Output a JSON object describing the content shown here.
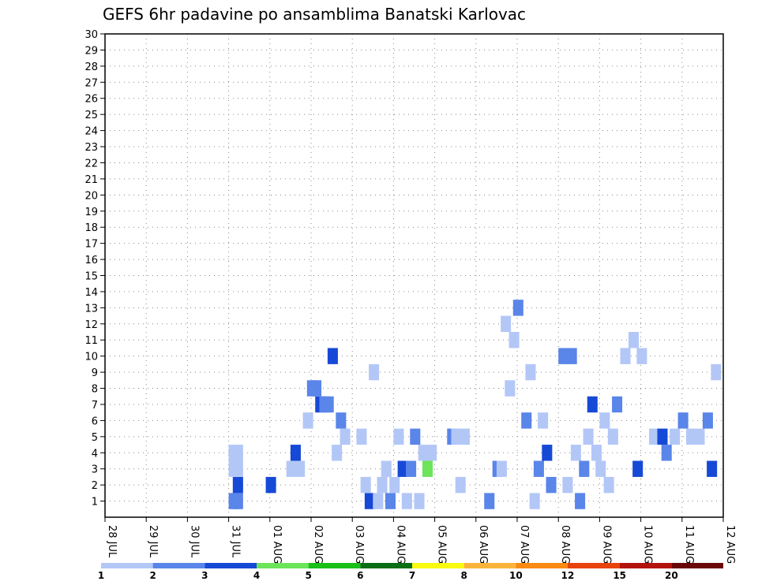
{
  "chart_data": {
    "type": "heatmap",
    "title": "GEFS 6hr padavine po ansamblima Banatski Karlovac",
    "x_labels": [
      "28 JUL",
      "29 JUL",
      "30 JUL",
      "31 JUL",
      "01 AUG",
      "02 AUG",
      "03 AUG",
      "04 AUG",
      "05 AUG",
      "06 AUG",
      "07 AUG",
      "08 AUG",
      "09 AUG",
      "10 AUG",
      "11 AUG",
      "12 AUG"
    ],
    "y_labels": [
      "1",
      "2",
      "3",
      "4",
      "5",
      "6",
      "7",
      "8",
      "9",
      "10",
      "11",
      "12",
      "13",
      "14",
      "15",
      "16",
      "17",
      "18",
      "19",
      "20",
      "21",
      "22",
      "23",
      "24",
      "25",
      "26",
      "27",
      "28",
      "29",
      "30"
    ],
    "x_range": [
      0,
      15
    ],
    "y_range": [
      0,
      30
    ],
    "grid": true,
    "legend_position": "bottom",
    "time_step_hours": 6,
    "colorbar": {
      "labels": [
        "1",
        "2",
        "3",
        "4",
        "5",
        "6",
        "7",
        "8",
        "10",
        "12",
        "15",
        "20"
      ],
      "colors": [
        "#b3c7f7",
        "#5a85e9",
        "#1649d6",
        "#6ce55a",
        "#18c018",
        "#0b6e14",
        "#fafa11",
        "#fbb43b",
        "#fb8a13",
        "#e8430b",
        "#b3130b",
        "#6a0707"
      ]
    },
    "cells": [
      [
        3.0,
        1,
        2
      ],
      [
        3.1,
        1,
        2
      ],
      [
        3.1,
        2,
        3
      ],
      [
        3.0,
        3,
        1
      ],
      [
        3.1,
        3,
        1
      ],
      [
        3.0,
        4,
        1
      ],
      [
        3.1,
        4,
        1
      ],
      [
        4.9,
        8,
        2
      ],
      [
        5.1,
        7,
        3
      ],
      [
        5.2,
        7,
        2
      ],
      [
        5.3,
        7,
        2
      ],
      [
        5.4,
        10,
        3
      ],
      [
        5.5,
        4,
        1
      ],
      [
        5.6,
        6,
        2
      ],
      [
        5.7,
        5,
        1
      ],
      [
        6.3,
        1,
        3
      ],
      [
        6.2,
        2,
        1
      ],
      [
        6.4,
        9,
        1
      ],
      [
        6.1,
        5,
        1
      ],
      [
        6.6,
        2,
        1
      ],
      [
        6.7,
        3,
        1
      ],
      [
        6.8,
        1,
        2
      ],
      [
        6.9,
        2,
        1
      ],
      [
        7.1,
        3,
        3
      ],
      [
        7.2,
        1,
        1
      ],
      [
        7.6,
        4,
        1
      ],
      [
        7.7,
        3,
        4
      ],
      [
        7.8,
        4,
        1
      ],
      [
        8.5,
        2,
        1
      ],
      [
        8.3,
        5,
        2
      ],
      [
        8.4,
        5,
        1
      ],
      [
        8.6,
        5,
        1
      ],
      [
        9.4,
        3,
        2
      ],
      [
        9.2,
        1,
        2
      ],
      [
        9.5,
        3,
        1
      ],
      [
        9.6,
        12,
        1
      ],
      [
        9.7,
        8,
        1
      ],
      [
        9.8,
        11,
        1
      ],
      [
        9.9,
        13,
        2
      ],
      [
        10.4,
        3,
        2
      ],
      [
        10.5,
        6,
        1
      ],
      [
        10.6,
        4,
        3
      ],
      [
        10.1,
        6,
        2
      ],
      [
        10.2,
        9,
        1
      ],
      [
        10.3,
        1,
        1
      ],
      [
        10.7,
        2,
        2
      ],
      [
        11.0,
        10,
        2
      ],
      [
        11.1,
        2,
        1
      ],
      [
        11.2,
        10,
        2
      ],
      [
        11.4,
        1,
        2
      ],
      [
        11.5,
        3,
        2
      ],
      [
        11.6,
        5,
        1
      ],
      [
        11.7,
        7,
        3
      ],
      [
        11.3,
        4,
        1
      ],
      [
        11.8,
        4,
        1
      ],
      [
        11.9,
        3,
        1
      ],
      [
        12.0,
        6,
        1
      ],
      [
        12.1,
        2,
        1
      ],
      [
        12.2,
        5,
        1
      ],
      [
        12.3,
        7,
        2
      ],
      [
        12.5,
        10,
        1
      ],
      [
        12.7,
        11,
        1
      ],
      [
        12.8,
        3,
        3
      ],
      [
        12.9,
        10,
        1
      ],
      [
        13.2,
        5,
        1
      ],
      [
        13.4,
        5,
        3
      ],
      [
        13.5,
        4,
        2
      ],
      [
        13.7,
        5,
        1
      ],
      [
        13.9,
        6,
        2
      ],
      [
        14.1,
        5,
        1
      ],
      [
        14.3,
        5,
        1
      ],
      [
        14.5,
        6,
        2
      ],
      [
        14.6,
        3,
        3
      ],
      [
        14.7,
        9,
        1
      ],
      [
        3.9,
        2,
        3
      ],
      [
        4.4,
        3,
        1
      ],
      [
        4.5,
        4,
        3
      ],
      [
        4.6,
        3,
        1
      ],
      [
        4.8,
        6,
        1
      ],
      [
        5.0,
        8,
        2
      ],
      [
        6.5,
        1,
        1
      ],
      [
        7.0,
        5,
        1
      ],
      [
        7.3,
        3,
        2
      ],
      [
        7.4,
        5,
        2
      ],
      [
        7.5,
        1,
        1
      ]
    ]
  }
}
